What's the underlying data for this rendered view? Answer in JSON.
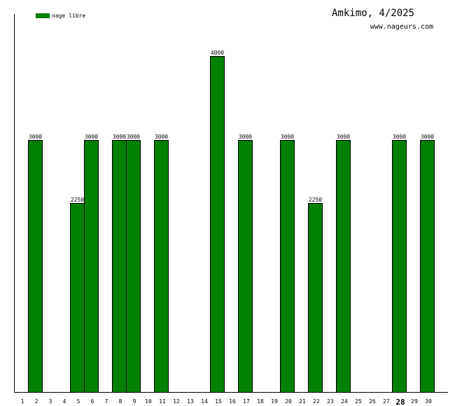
{
  "header": {
    "title": "Amkimo, 4/2025",
    "site": "www.nageurs.com"
  },
  "chart_data": {
    "type": "bar",
    "legend": {
      "label": "nage libre",
      "placement": "top-left"
    },
    "color": "#008000",
    "days": [
      1,
      2,
      3,
      4,
      5,
      6,
      7,
      8,
      9,
      10,
      11,
      12,
      13,
      14,
      15,
      16,
      17,
      18,
      19,
      20,
      21,
      22,
      23,
      24,
      25,
      26,
      27,
      28,
      29,
      30
    ],
    "highlight_day": 28,
    "values": [
      0,
      3000,
      0,
      0,
      2250,
      3000,
      0,
      3000,
      3000,
      0,
      3000,
      0,
      0,
      0,
      4000,
      0,
      3000,
      0,
      0,
      3000,
      0,
      2250,
      0,
      3000,
      0,
      0,
      0,
      3000,
      0,
      3000
    ],
    "ylim": [
      0,
      4000
    ],
    "grid": false
  }
}
